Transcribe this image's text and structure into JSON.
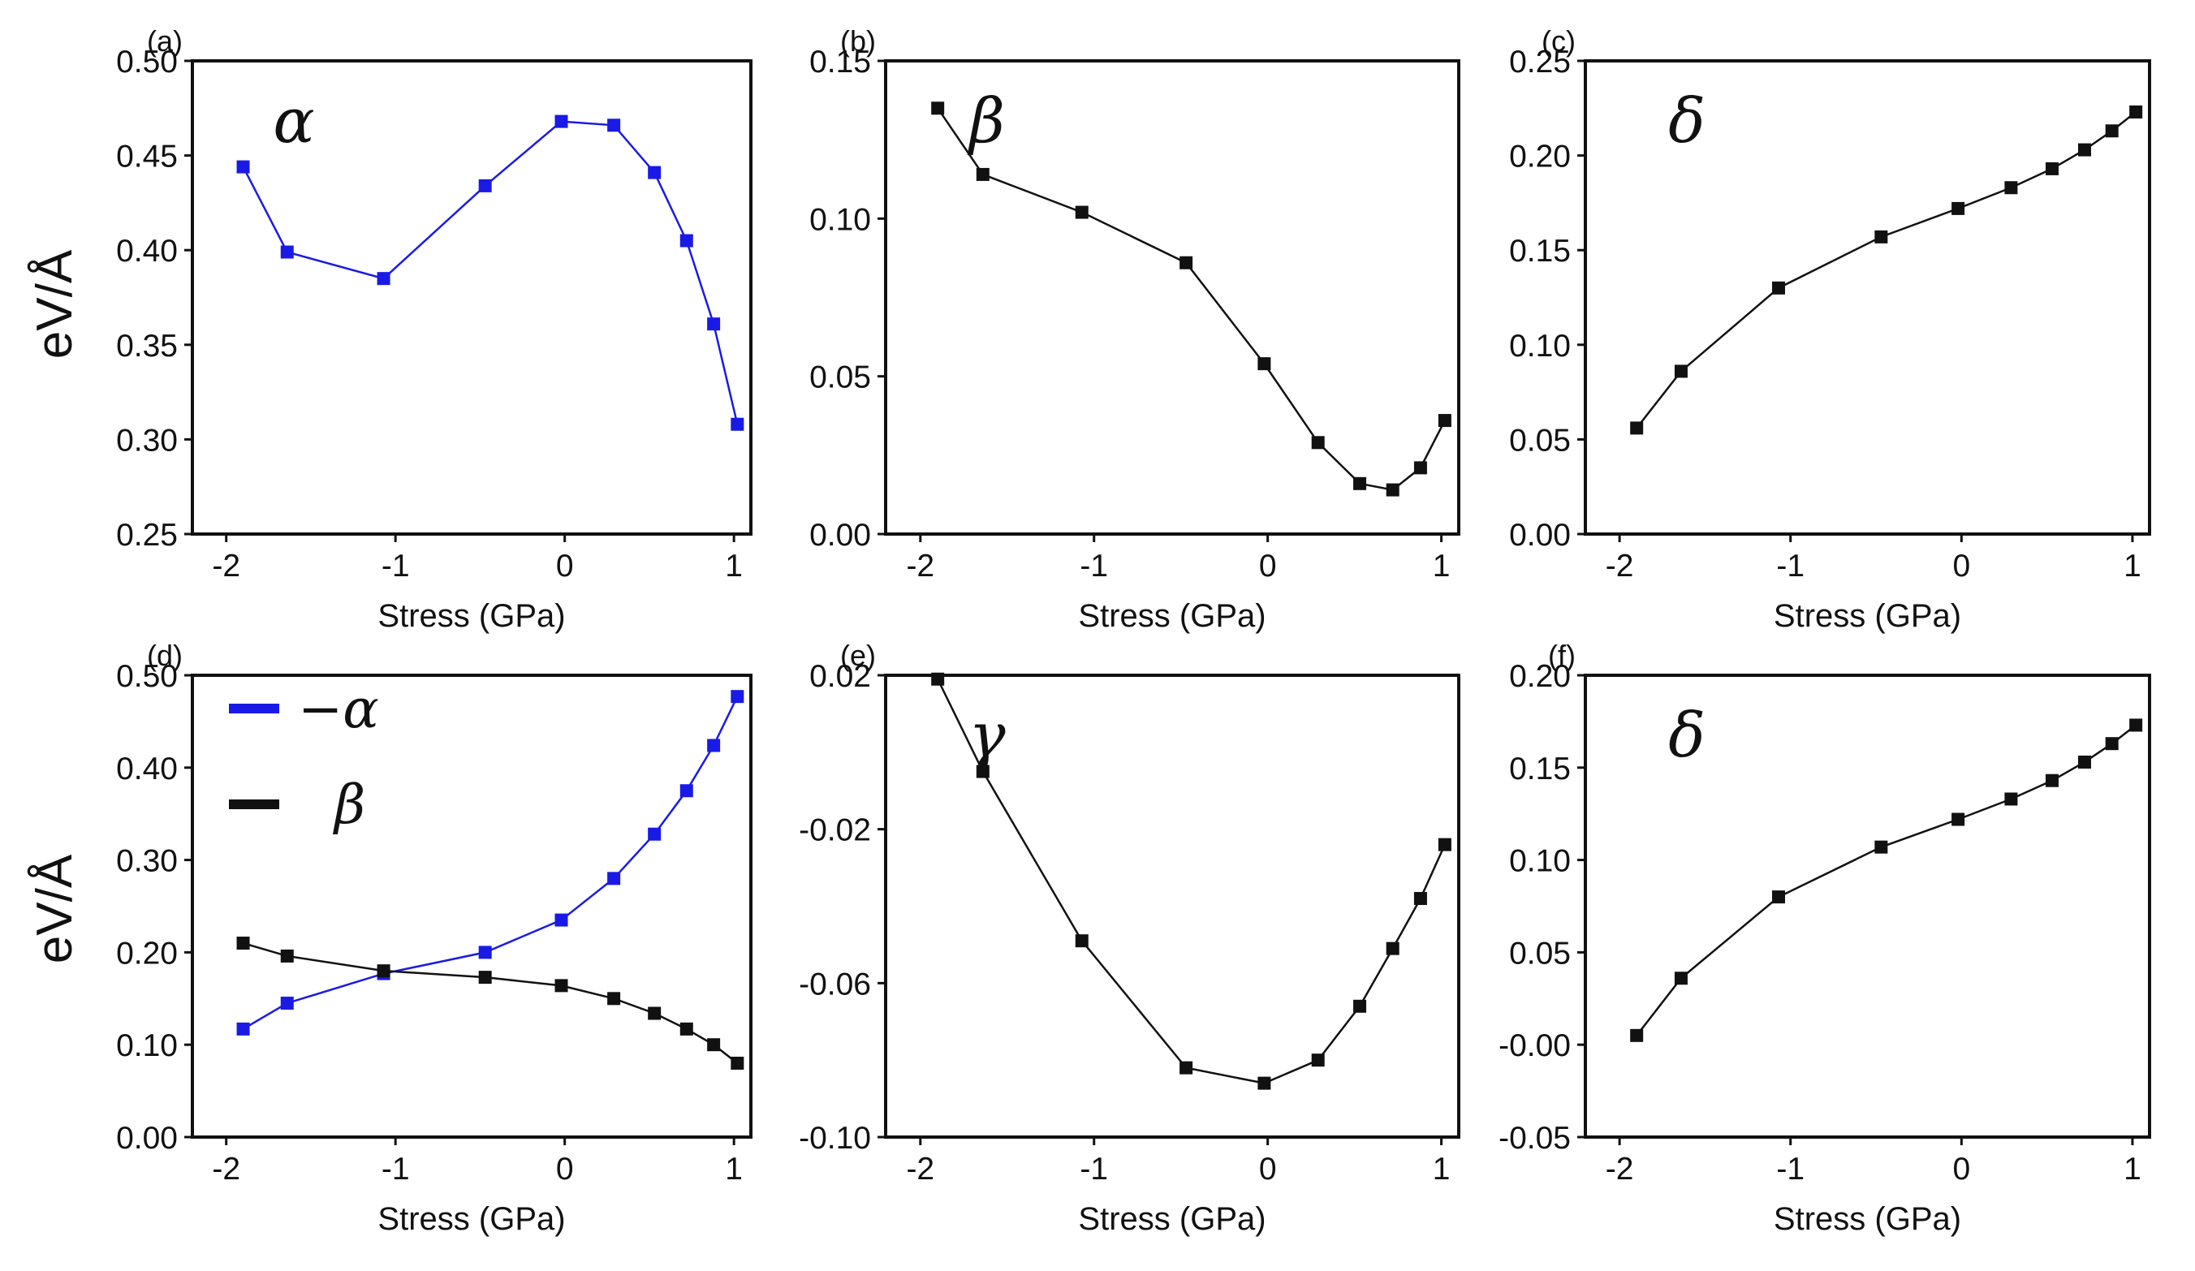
{
  "figure": {
    "ylabel": "eV/Å"
  },
  "chart_data": [
    {
      "panel": "(a)",
      "type": "line",
      "annotation": "α",
      "xlabel": "Stress (GPa)",
      "ylabel": "eV/Å",
      "xlim": [
        -2.2,
        1.1
      ],
      "ylim": [
        0.25,
        0.5
      ],
      "xticks": [
        -2,
        -1,
        0,
        1
      ],
      "xtick_labels": [
        "-2",
        "-1",
        "0",
        "1"
      ],
      "yticks": [
        0.25,
        0.3,
        0.35,
        0.4,
        0.45,
        0.5
      ],
      "ytick_labels": [
        "0.25",
        "0.30",
        "0.35",
        "0.40",
        "0.45",
        "0.50"
      ],
      "series": [
        {
          "name": "α",
          "color": "#1a1ae6",
          "x": [
            -1.9,
            -1.64,
            -1.07,
            -0.47,
            -0.02,
            0.29,
            0.53,
            0.72,
            0.88,
            1.02
          ],
          "y": [
            0.444,
            0.399,
            0.385,
            0.434,
            0.468,
            0.466,
            0.441,
            0.405,
            0.361,
            0.308
          ]
        }
      ]
    },
    {
      "panel": "(b)",
      "type": "line",
      "annotation": "β",
      "xlabel": "Stress (GPa)",
      "ylabel": "",
      "xlim": [
        -2.2,
        1.1
      ],
      "ylim": [
        0.0,
        0.15
      ],
      "xticks": [
        -2,
        -1,
        0,
        1
      ],
      "xtick_labels": [
        "-2",
        "-1",
        "0",
        "1"
      ],
      "yticks": [
        0.0,
        0.05,
        0.1,
        0.15
      ],
      "ytick_labels": [
        "0.00",
        "0.05",
        "0.10",
        "0.15"
      ],
      "series": [
        {
          "name": "β",
          "color": "#111111",
          "x": [
            -1.9,
            -1.64,
            -1.07,
            -0.47,
            -0.02,
            0.29,
            0.53,
            0.72,
            0.88,
            1.02
          ],
          "y": [
            0.135,
            0.114,
            0.102,
            0.086,
            0.054,
            0.029,
            0.016,
            0.014,
            0.021,
            0.036
          ]
        }
      ]
    },
    {
      "panel": "(c)",
      "type": "line",
      "annotation": "δ",
      "xlabel": "Stress (GPa)",
      "ylabel": "",
      "xlim": [
        -2.2,
        1.1
      ],
      "ylim": [
        0.0,
        0.25
      ],
      "xticks": [
        -2,
        -1,
        0,
        1
      ],
      "xtick_labels": [
        "-2",
        "-1",
        "0",
        "1"
      ],
      "yticks": [
        0.0,
        0.05,
        0.1,
        0.15,
        0.2,
        0.25
      ],
      "ytick_labels": [
        "0.00",
        "0.05",
        "0.10",
        "0.15",
        "0.20",
        "0.25"
      ],
      "series": [
        {
          "name": "δ",
          "color": "#111111",
          "x": [
            -1.9,
            -1.64,
            -1.07,
            -0.47,
            -0.02,
            0.29,
            0.53,
            0.72,
            0.88,
            1.02
          ],
          "y": [
            0.056,
            0.086,
            0.13,
            0.157,
            0.172,
            0.183,
            0.193,
            0.203,
            0.213,
            0.223
          ]
        }
      ]
    },
    {
      "panel": "(d)",
      "type": "line",
      "annotation": "",
      "xlabel": "Stress (GPa)",
      "ylabel": "eV/Å",
      "xlim": [
        -2.2,
        1.1
      ],
      "ylim": [
        0.0,
        0.5
      ],
      "xticks": [
        -2,
        -1,
        0,
        1
      ],
      "xtick_labels": [
        "-2",
        "-1",
        "0",
        "1"
      ],
      "yticks": [
        0.0,
        0.1,
        0.2,
        0.3,
        0.4,
        0.5
      ],
      "ytick_labels": [
        "0.00",
        "0.10",
        "0.20",
        "0.30",
        "0.40",
        "0.50"
      ],
      "legend": {
        "position": "top-left",
        "entries": [
          "−α",
          "β"
        ]
      },
      "series": [
        {
          "name": "−α",
          "color": "#1a1ae6",
          "x": [
            -1.9,
            -1.64,
            -1.07,
            -0.47,
            -0.02,
            0.29,
            0.53,
            0.72,
            0.88,
            1.02
          ],
          "y": [
            0.117,
            0.145,
            0.177,
            0.2,
            0.235,
            0.28,
            0.328,
            0.375,
            0.424,
            0.477
          ]
        },
        {
          "name": "β",
          "color": "#111111",
          "x": [
            -1.9,
            -1.64,
            -1.07,
            -0.47,
            -0.02,
            0.29,
            0.53,
            0.72,
            0.88,
            1.02
          ],
          "y": [
            0.21,
            0.196,
            0.18,
            0.173,
            0.164,
            0.15,
            0.134,
            0.117,
            0.1,
            0.08
          ]
        }
      ]
    },
    {
      "panel": "(e)",
      "type": "line",
      "annotation": "γ",
      "xlabel": "Stress (GPa)",
      "ylabel": "",
      "xlim": [
        -2.2,
        1.1
      ],
      "ylim": [
        -0.1,
        0.02
      ],
      "xticks": [
        -2,
        -1,
        0,
        1
      ],
      "xtick_labels": [
        "-2",
        "-1",
        "0",
        "1"
      ],
      "yticks": [
        -0.1,
        -0.06,
        -0.02,
        0.02
      ],
      "ytick_labels": [
        "-0.10",
        "-0.06",
        "-0.02",
        "0.02"
      ],
      "series": [
        {
          "name": "γ",
          "color": "#111111",
          "x": [
            -1.9,
            -1.64,
            -1.07,
            -0.47,
            -0.02,
            0.29,
            0.53,
            0.72,
            0.88,
            1.02
          ],
          "y": [
            0.019,
            -0.005,
            -0.049,
            -0.082,
            -0.086,
            -0.08,
            -0.066,
            -0.051,
            -0.038,
            -0.024
          ]
        }
      ]
    },
    {
      "panel": "(f)",
      "type": "line",
      "annotation": "δ",
      "xlabel": "Stress (GPa)",
      "ylabel": "",
      "xlim": [
        -2.2,
        1.1
      ],
      "ylim": [
        -0.05,
        0.2
      ],
      "xticks": [
        -2,
        -1,
        0,
        1
      ],
      "xtick_labels": [
        "-2",
        "-1",
        "0",
        "1"
      ],
      "yticks": [
        -0.05,
        0.0,
        0.05,
        0.1,
        0.15,
        0.2
      ],
      "ytick_labels": [
        "-0.05",
        "-0.00",
        "0.05",
        "0.10",
        "0.15",
        "0.20"
      ],
      "series": [
        {
          "name": "δ",
          "color": "#111111",
          "x": [
            -1.9,
            -1.64,
            -1.07,
            -0.47,
            -0.02,
            0.29,
            0.53,
            0.72,
            0.88,
            1.02
          ],
          "y": [
            0.005,
            0.036,
            0.08,
            0.107,
            0.122,
            0.133,
            0.143,
            0.153,
            0.163,
            0.173
          ]
        }
      ]
    }
  ]
}
